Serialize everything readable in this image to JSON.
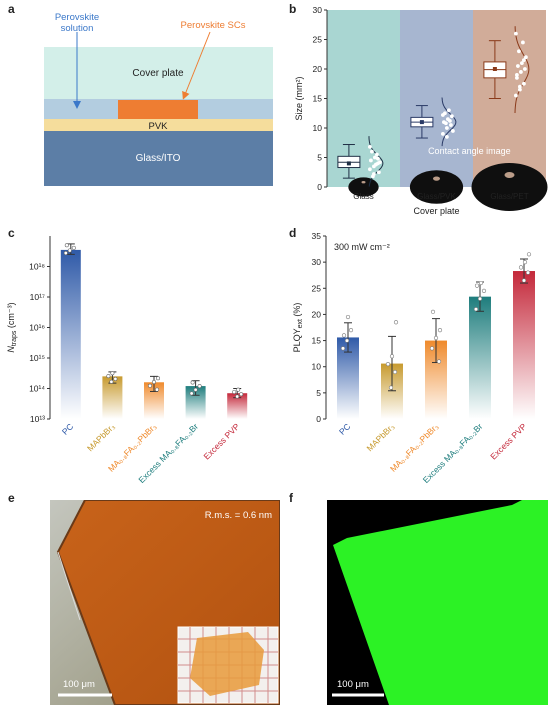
{
  "panel_letters": {
    "a": "a",
    "b": "b",
    "c": "c",
    "d": "d",
    "e": "e",
    "f": "f"
  },
  "panel_a": {
    "label_solution_line1": "Perovskite",
    "label_solution_line2": "solution",
    "label_scs": "Perovskite SCs",
    "label_cover": "Cover plate",
    "label_pvk": "PVK",
    "label_glass": "Glass/ITO",
    "colors": {
      "cover": "#d3efe9",
      "solution": "#b3cde0",
      "sc": "#ee7d32",
      "pvk": "#f5dd9c",
      "glass": "#5c7ea6",
      "arrow_blue": "#3b78c9",
      "arrow_orange": "#ee7d32"
    }
  },
  "chart_data": [
    {
      "type": "box",
      "panel": "b",
      "ylabel": "Size (mm²)",
      "xlabel": "Cover plate",
      "ylim": [
        0,
        30
      ],
      "yticks": [
        0,
        5,
        10,
        15,
        20,
        25,
        30
      ],
      "annotation": "Contact angle image",
      "categories": [
        "Glass",
        "Glass/PVK",
        "Glass/PET"
      ],
      "boxes": [
        {
          "name": "Glass",
          "q1": 3.3,
          "median": 4.2,
          "q3": 5.2,
          "mean": 4.0,
          "whisker_low": 1.5,
          "whisker_high": 7.2,
          "points": [
            3.0,
            3.5,
            4.0,
            4.5,
            5.0,
            2.5,
            6.0,
            3.8,
            4.2,
            1.8,
            5.5,
            6.8,
            2.2,
            4.8
          ],
          "color": "#1f2f45"
        },
        {
          "name": "Glass/PVK",
          "q1": 10.2,
          "median": 11.0,
          "q3": 11.8,
          "mean": 11.0,
          "whisker_low": 8.3,
          "whisker_high": 13.8,
          "points": [
            9.0,
            10.0,
            10.5,
            11.0,
            11.5,
            12.0,
            12.5,
            13.0,
            9.5,
            10.8,
            11.2,
            12.2,
            8.5
          ],
          "color": "#2a3a66"
        },
        {
          "name": "Glass/PET",
          "q1": 18.5,
          "median": 19.9,
          "q3": 21.2,
          "mean": 20.0,
          "whisker_low": 15.0,
          "whisker_high": 24.8,
          "points": [
            15.5,
            16.5,
            17.5,
            18.5,
            19.5,
            20.0,
            20.5,
            21.0,
            22.0,
            23.0,
            24.5,
            26.0,
            17.0,
            21.5,
            19.0
          ],
          "color": "#8a3a1a"
        }
      ],
      "bg_colors": [
        "#a9d6d2",
        "#a7b6d0",
        "#d1ac99"
      ]
    },
    {
      "type": "bar",
      "panel": "c",
      "ylabel_main": "N",
      "ylabel_sub": "traps",
      "ylabel_unit": " (cm⁻³)",
      "log_scale": true,
      "ylim": [
        10000000000000.0,
        1e+19
      ],
      "ytick_labels": [
        "10¹³",
        "10¹⁴",
        "10¹⁵",
        "10¹⁶",
        "10¹⁷",
        "10¹⁸"
      ],
      "categories": [
        "PC",
        "MAPbBr₃",
        "MA₀.₈FA₀.₂PbBr₃",
        "Excess MA₀.₈FA₀.₂Br",
        "Excess PVP"
      ],
      "category_colors": [
        "#2f5aa8",
        "#c79a2e",
        "#ef8a2c",
        "#1e7d7d",
        "#c4283a"
      ],
      "values": [
        3.5e+18,
        250000000000000.0,
        160000000000000.0,
        120000000000000.0,
        70000000000000.0
      ],
      "error_low": [
        2.5e+18,
        150000000000000.0,
        80000000000000.0,
        60000000000000.0,
        50000000000000.0
      ],
      "error_high": [
        5.5e+18,
        350000000000000.0,
        250000000000000.0,
        180000000000000.0,
        100000000000000.0
      ]
    },
    {
      "type": "bar",
      "panel": "d",
      "ylabel": "PLQY",
      "ylabel_sub": "ext",
      "ylabel_unit": " (%)",
      "annotation": "300 mW cm⁻²",
      "ylim": [
        0,
        35
      ],
      "yticks": [
        0,
        5,
        10,
        15,
        20,
        25,
        30,
        35
      ],
      "categories": [
        "PC",
        "MAPbBr₃",
        "MA₀.₈FA₀.₂PbBr₃",
        "Excess MA₀.₈FA₀.₂Br",
        "Excess PVP"
      ],
      "category_colors": [
        "#2f5aa8",
        "#c79a2e",
        "#ef8a2c",
        "#1e7d7d",
        "#c4283a"
      ],
      "values": [
        15.6,
        10.6,
        15.0,
        23.4,
        28.3
      ],
      "errors": [
        2.8,
        5.2,
        4.2,
        2.8,
        2.3
      ],
      "points": [
        [
          13.5,
          15,
          17,
          16,
          19.5
        ],
        [
          6,
          9,
          10.5,
          12,
          18.5
        ],
        [
          11,
          13.5,
          15.5,
          17,
          20.5
        ],
        [
          21,
          23,
          24.5,
          25.5,
          26
        ],
        [
          26.5,
          28,
          29,
          30,
          31.5
        ]
      ]
    }
  ],
  "panel_e": {
    "rms": "R.m.s. = 0.6 nm",
    "scale": "100 μm"
  },
  "panel_f": {
    "scale": "100 μm"
  }
}
